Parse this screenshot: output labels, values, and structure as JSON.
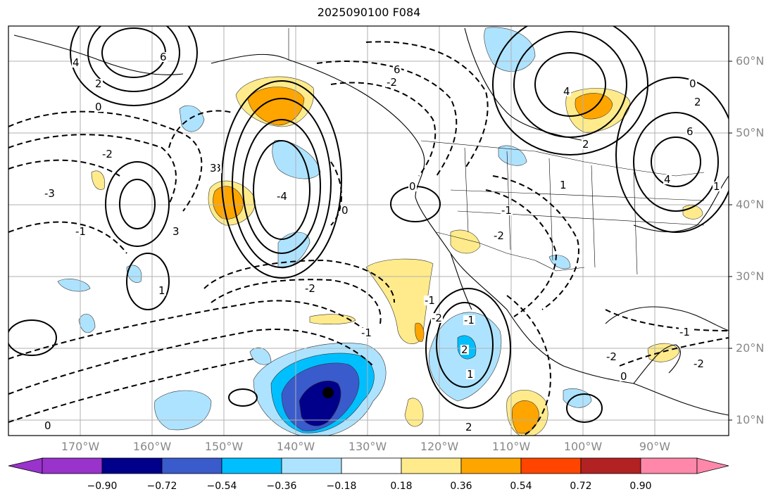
{
  "title": "2025090100 F084",
  "lat_labels": [
    "60°N",
    "50°N",
    "40°N",
    "30°N",
    "20°N",
    "10°N"
  ],
  "lon_labels": [
    "170°W",
    "160°W",
    "150°W",
    "140°W",
    "130°W",
    "120°W",
    "110°W",
    "100°W",
    "90°W"
  ],
  "colorbar": {
    "ticks": [
      "−0.90",
      "−0.72",
      "−0.54",
      "−0.36",
      "−0.18",
      "0.18",
      "0.36",
      "0.54",
      "0.72",
      "0.90"
    ],
    "colors": [
      "#9933cc",
      "#00008b",
      "#3a5bcc",
      "#00bfff",
      "#aee3ff",
      "#ffffff",
      "#ffeb8c",
      "#ffa500",
      "#ff4500",
      "#b22222",
      "#ff88aa"
    ]
  },
  "contour_labels": [
    "6",
    "4",
    "2",
    "0",
    "-2",
    "-3",
    "-1",
    "1",
    "3",
    "-4",
    "6",
    "4",
    "2",
    "-2",
    "-1",
    "1",
    "0",
    "0",
    "2",
    "-2",
    "-1",
    "-2",
    "6",
    "4",
    "2",
    "1",
    "-1",
    "-2",
    "0",
    "1",
    "-1",
    "0",
    "-1",
    "-2",
    "2",
    "0",
    "-2",
    "3",
    "-3"
  ]
}
